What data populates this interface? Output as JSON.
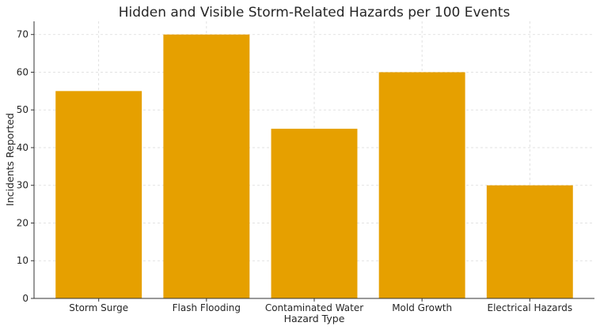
{
  "chart_data": {
    "type": "bar",
    "title": "Hidden and Visible Storm-Related Hazards per 100 Events",
    "xlabel": "Hazard Type",
    "ylabel": "Incidents Reported",
    "categories": [
      "Storm Surge",
      "Flash Flooding",
      "Contaminated Water",
      "Mold Growth",
      "Electrical Hazards"
    ],
    "values": [
      55,
      70,
      45,
      60,
      30
    ],
    "ylim": [
      0,
      73.5
    ],
    "yticks": [
      0,
      10,
      20,
      30,
      40,
      50,
      60,
      70
    ],
    "grid": true,
    "bar_color": "#e6a000"
  }
}
